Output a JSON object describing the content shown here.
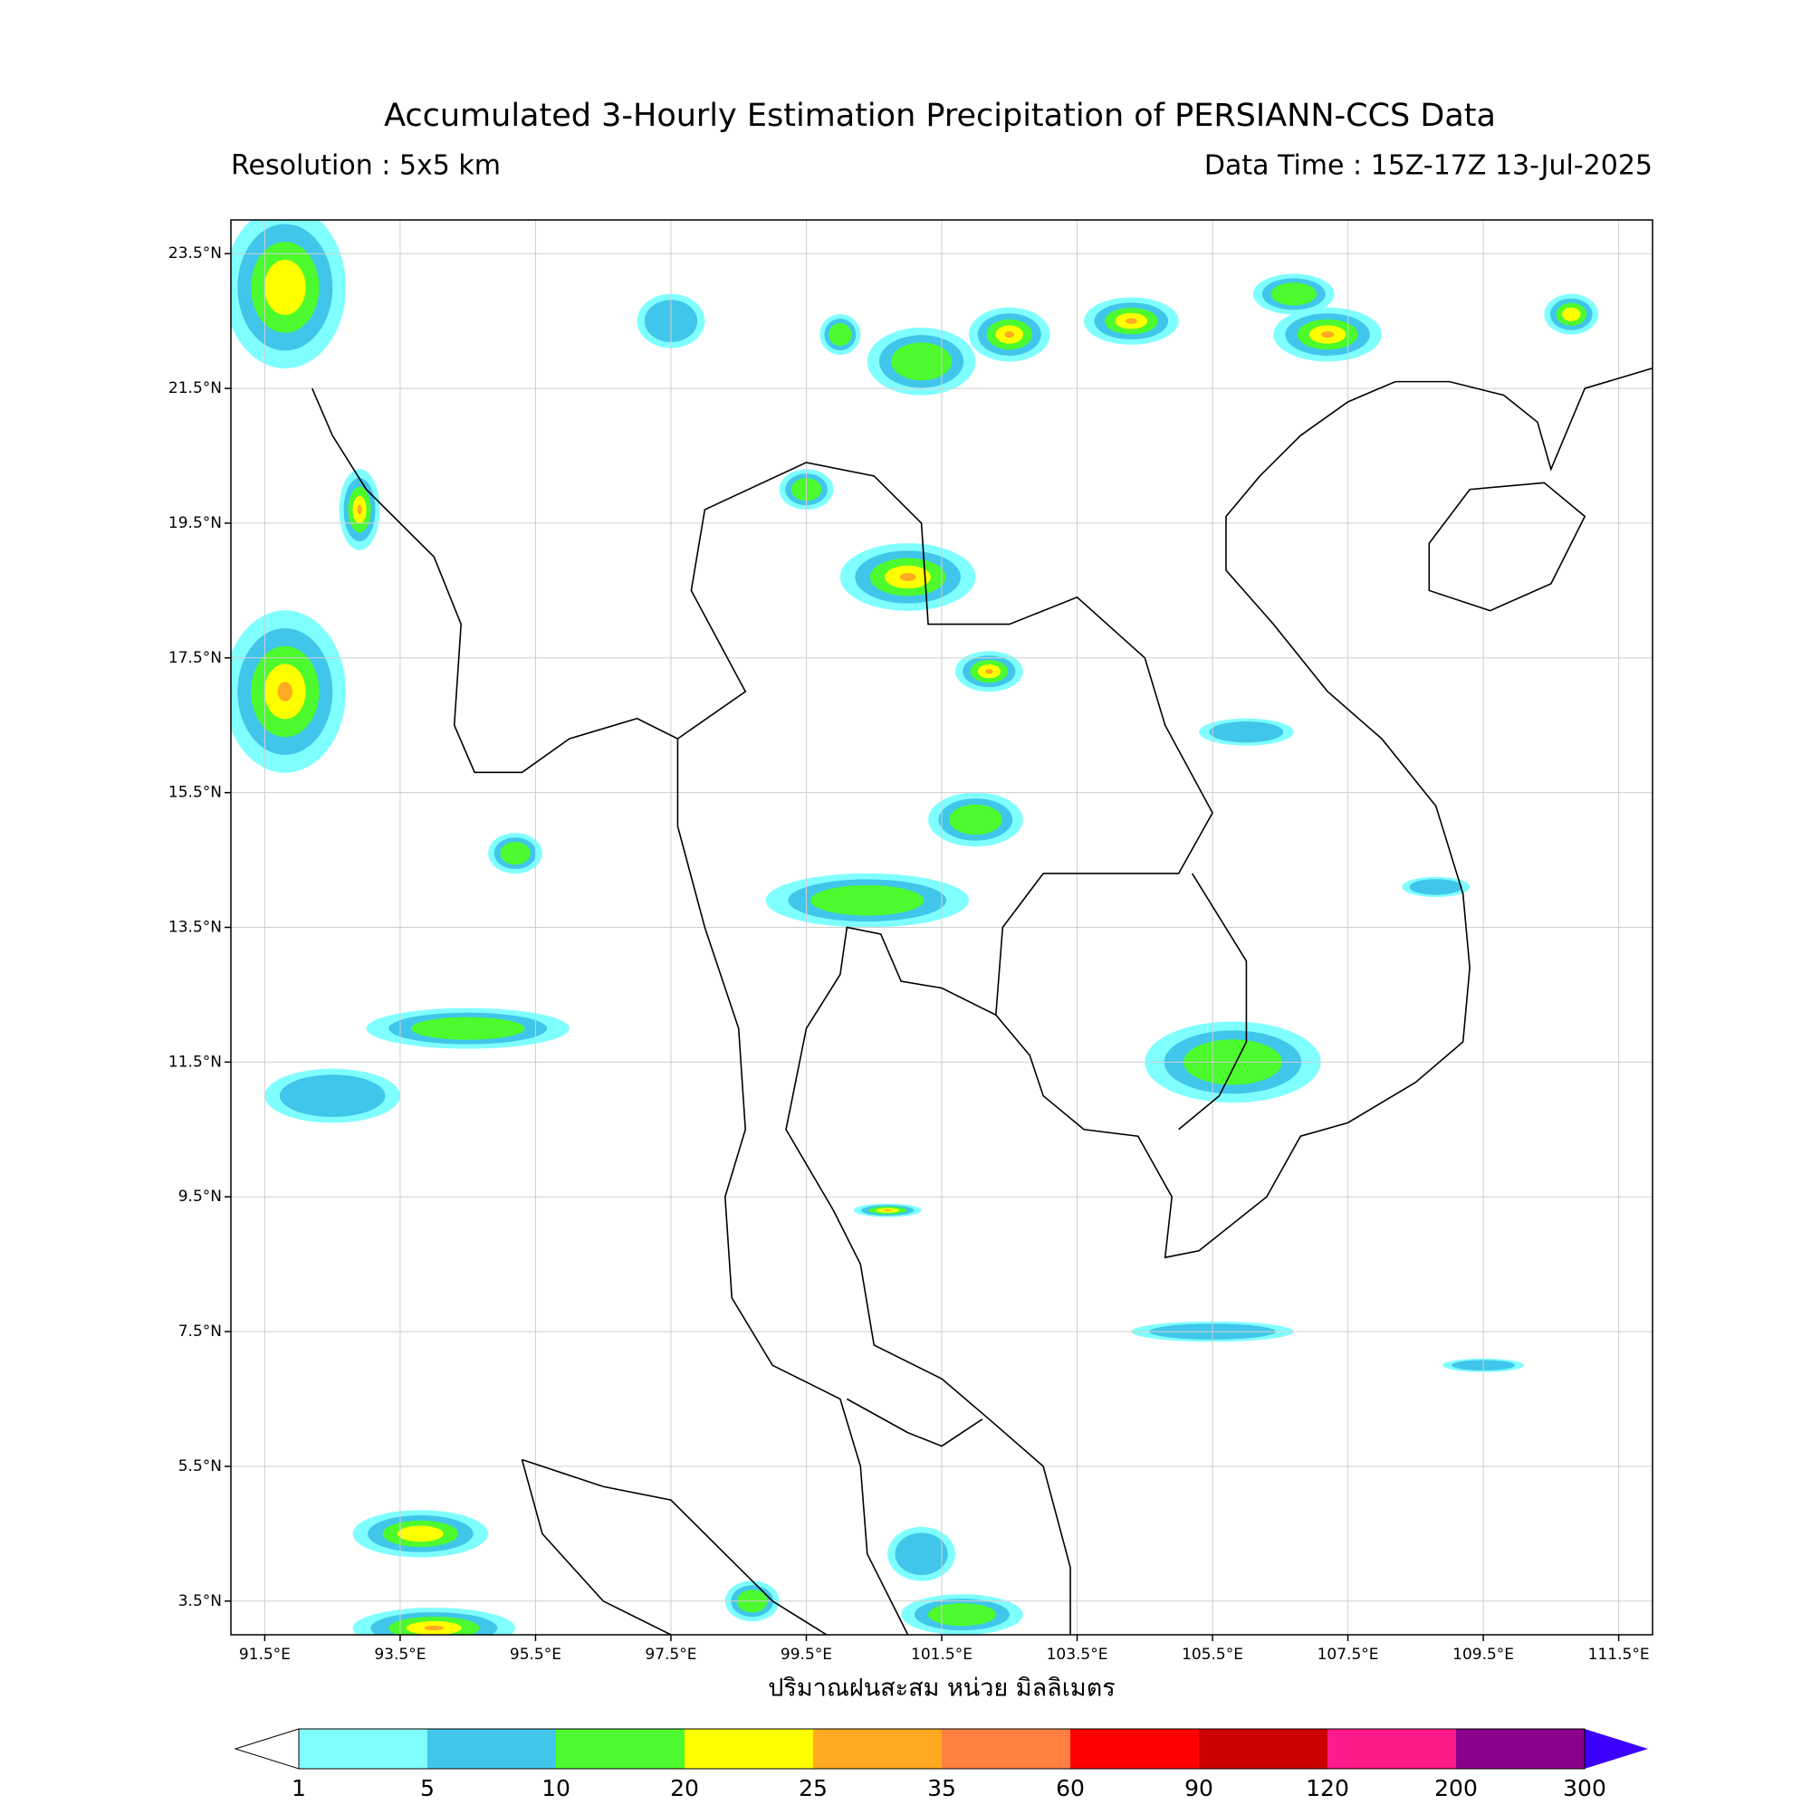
{
  "title": "Accumulated 3-Hourly Estimation Precipitation of PERSIANN-CCS Data",
  "resolution": "Resolution : 5x5 km",
  "data_time": "Data Time : 15Z-17Z 13-Jul-2025",
  "map": {
    "lon_range": [
      91,
      112
    ],
    "lat_range": [
      3,
      24
    ],
    "lon_ticks": [
      {
        "value": 91.5,
        "label": "91.5°E"
      },
      {
        "value": 93.5,
        "label": "93.5°E"
      },
      {
        "value": 95.5,
        "label": "95.5°E"
      },
      {
        "value": 97.5,
        "label": "97.5°E"
      },
      {
        "value": 99.5,
        "label": "99.5°E"
      },
      {
        "value": 101.5,
        "label": "101.5°E"
      },
      {
        "value": 103.5,
        "label": "103.5°E"
      },
      {
        "value": 105.5,
        "label": "105.5°E"
      },
      {
        "value": 107.5,
        "label": "107.5°E"
      },
      {
        "value": 109.5,
        "label": "109.5°E"
      },
      {
        "value": 111.5,
        "label": "111.5°E"
      }
    ],
    "lat_ticks": [
      {
        "value": 23.5,
        "label": "23.5°N"
      },
      {
        "value": 21.5,
        "label": "21.5°N"
      },
      {
        "value": 19.5,
        "label": "19.5°N"
      },
      {
        "value": 17.5,
        "label": "17.5°N"
      },
      {
        "value": 15.5,
        "label": "15.5°N"
      },
      {
        "value": 13.5,
        "label": "13.5°N"
      },
      {
        "value": 11.5,
        "label": "11.5°N"
      },
      {
        "value": 9.5,
        "label": "9.5°N"
      },
      {
        "value": 7.5,
        "label": "7.5°N"
      },
      {
        "value": 5.5,
        "label": "5.5°N"
      },
      {
        "value": 3.5,
        "label": "3.5°N"
      }
    ]
  },
  "colorbar": {
    "label": "ปริมาณฝนสะสม หน่วย มิลลิเมตร",
    "levels": [
      1,
      5,
      10,
      20,
      25,
      35,
      60,
      90,
      120,
      200,
      300
    ],
    "colors": [
      "#80ffff",
      "#40c6ea",
      "#4cfa2e",
      "#ffff00",
      "#ffaa22",
      "#ff8040",
      "#ff0000",
      "#cc0000",
      "#ff1a8c",
      "#8b008b"
    ],
    "extend_color": "#3c00ff"
  }
}
